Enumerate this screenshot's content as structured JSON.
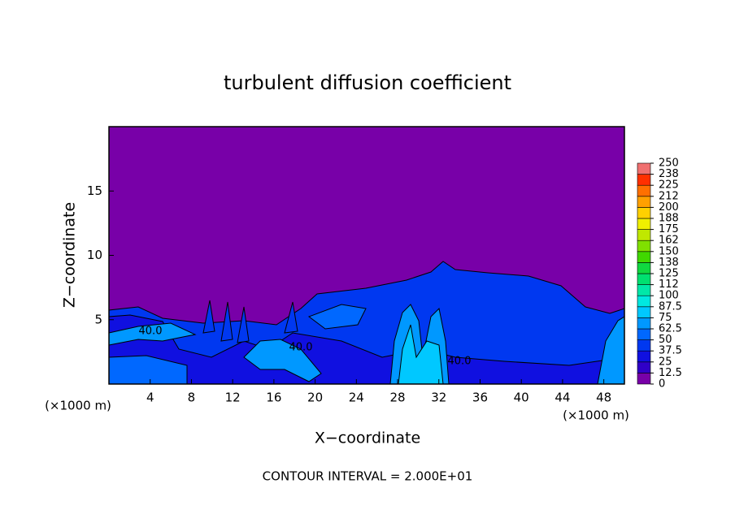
{
  "chart_data": {
    "type": "contour",
    "title": "turbulent diffusion coefficient",
    "x_label": "X−coordinate",
    "y_label": "Z−coordinate",
    "x_unit": "(×1000 m)",
    "footer": "CONTOUR INTERVAL = 2.000E+01",
    "background_color": "#7800a8",
    "xlim": [
      0,
      50
    ],
    "xticks": [
      4,
      8,
      12,
      16,
      20,
      24,
      28,
      32,
      36,
      40,
      44,
      48
    ],
    "ylim": [
      0,
      20
    ],
    "yticks": [
      5,
      10,
      15
    ],
    "annotations": [
      "40.0",
      "40.0",
      "40.0"
    ],
    "colorbar": {
      "ticks": [
        0,
        12.5,
        25,
        37.5,
        50,
        62.5,
        75,
        87.5,
        100,
        {
          "value": 112.5,
          "label": "112"
        },
        125,
        {
          "value": 137.5,
          "label": "138"
        },
        150,
        {
          "value": 162.5,
          "label": "162"
        },
        175,
        {
          "value": 187.5,
          "label": "188"
        },
        200,
        {
          "value": 212.5,
          "label": "212"
        },
        225,
        {
          "value": 237.5,
          "label": "238"
        },
        250
      ],
      "colors": [
        "#7800a8",
        "#3000c8",
        "#1010e0",
        "#0038f0",
        "#0068ff",
        "#0098ff",
        "#00c8ff",
        "#00e8e0",
        "#00e8a8",
        "#00e070",
        "#10d840",
        "#40d800",
        "#80e000",
        "#c0e800",
        "#f0f000",
        "#ffd000",
        "#ffa000",
        "#ff7000",
        "#ff3000",
        "#f07070"
      ]
    }
  }
}
